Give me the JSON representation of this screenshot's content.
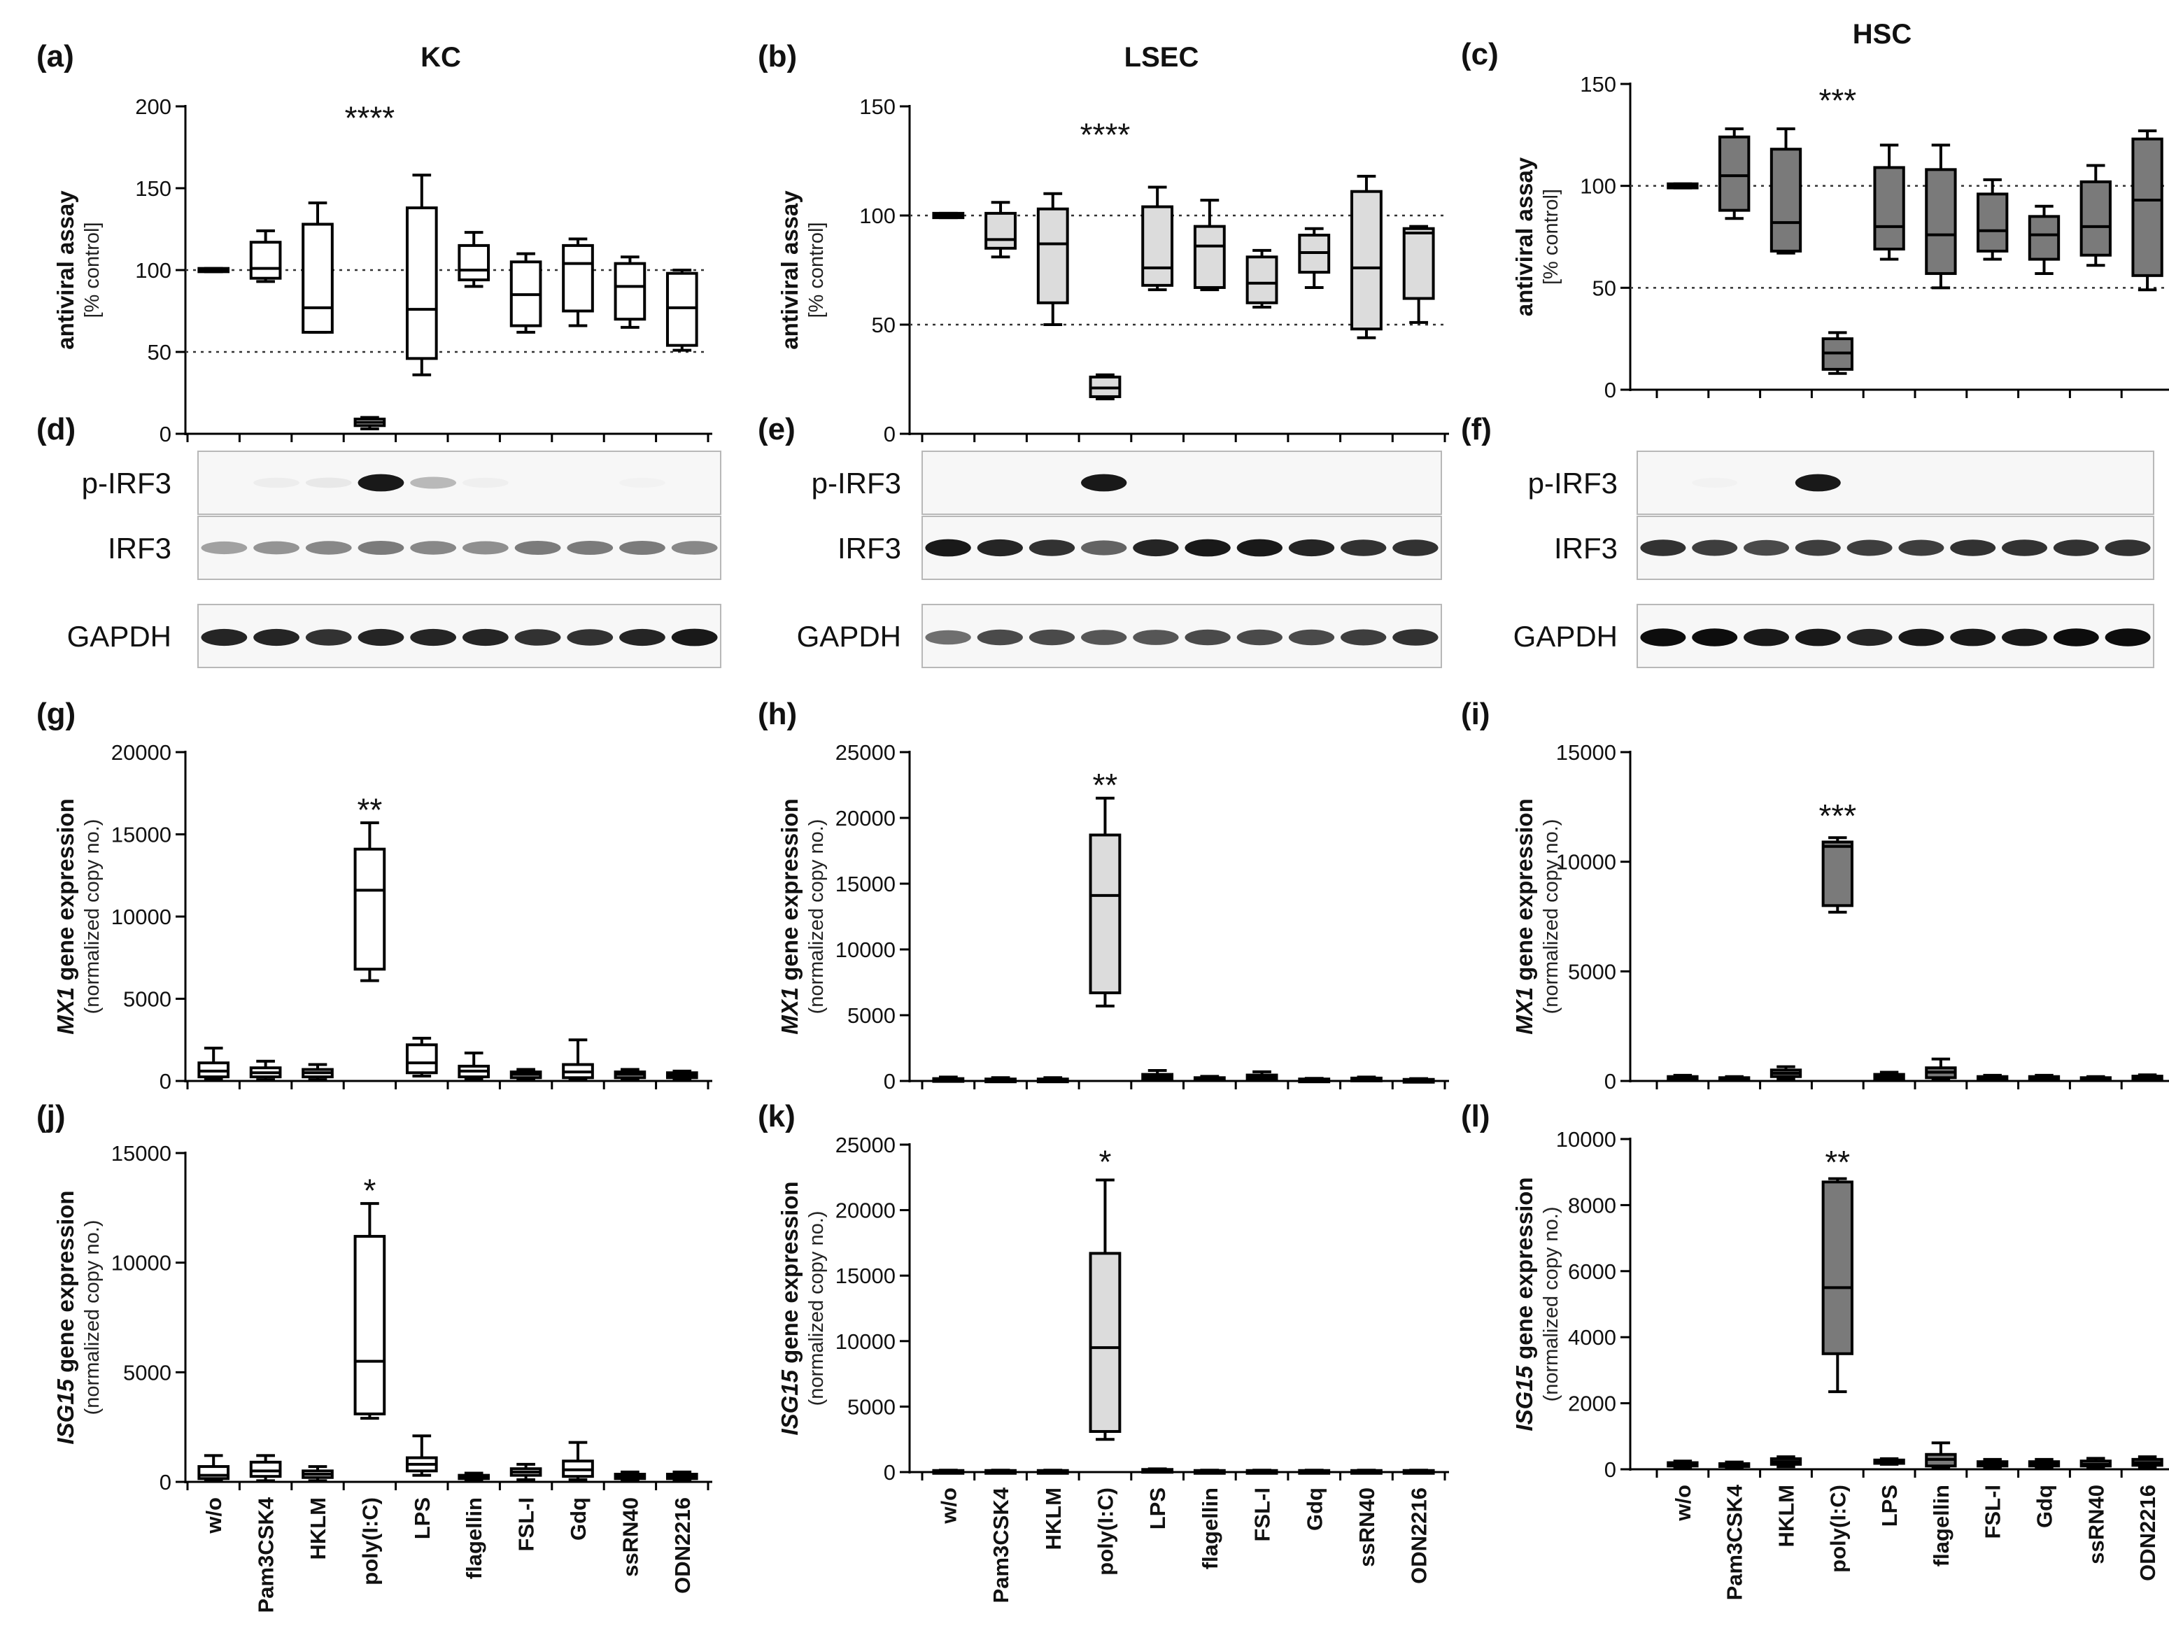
{
  "colors": {
    "KC": "#ffffff",
    "LSEC": "#dcdcdc",
    "HSC": "#7a7a7a",
    "stroke": "#000000",
    "blot_bg": "#f7f7f7"
  },
  "categories": [
    "w/o",
    "Pam3CSK4",
    "HKLM",
    "poly(I:C)",
    "LPS",
    "flagellin",
    "FSL-I",
    "Gdq",
    "ssRN40",
    "ODN2216"
  ],
  "columns": [
    {
      "title": "KC",
      "fill_key": "KC"
    },
    {
      "title": "LSEC",
      "fill_key": "LSEC"
    },
    {
      "title": "HSC",
      "fill_key": "HSC"
    }
  ],
  "blots": [
    {
      "label": "(d)",
      "column": 0,
      "row_labels": [
        "p-IRF3",
        "IRF3",
        "GAPDH"
      ],
      "band_intensity": [
        [
          0,
          0.04,
          0.06,
          0.9,
          0.25,
          0.03,
          0,
          0,
          0.02,
          0
        ],
        [
          0.35,
          0.4,
          0.45,
          0.5,
          0.45,
          0.42,
          0.5,
          0.5,
          0.5,
          0.45
        ],
        [
          0.85,
          0.85,
          0.8,
          0.85,
          0.85,
          0.85,
          0.8,
          0.8,
          0.85,
          0.9
        ]
      ]
    },
    {
      "label": "(e)",
      "column": 1,
      "row_labels": [
        "p-IRF3",
        "IRF3",
        "GAPDH"
      ],
      "band_intensity": [
        [
          0,
          0,
          0,
          0.9,
          0,
          0,
          0,
          0,
          0,
          0
        ],
        [
          0.9,
          0.85,
          0.8,
          0.6,
          0.85,
          0.9,
          0.9,
          0.85,
          0.8,
          0.8
        ],
        [
          0.55,
          0.7,
          0.7,
          0.65,
          0.65,
          0.7,
          0.7,
          0.7,
          0.75,
          0.8
        ]
      ]
    },
    {
      "label": "(f)",
      "column": 2,
      "row_labels": [
        "p-IRF3",
        "IRF3",
        "GAPDH"
      ],
      "band_intensity": [
        [
          0,
          0.02,
          0,
          0.9,
          0,
          0,
          0,
          0,
          0,
          0
        ],
        [
          0.8,
          0.75,
          0.7,
          0.75,
          0.75,
          0.75,
          0.8,
          0.8,
          0.8,
          0.8
        ],
        [
          0.95,
          0.95,
          0.9,
          0.9,
          0.85,
          0.9,
          0.9,
          0.9,
          0.95,
          0.95
        ]
      ]
    }
  ],
  "chart_data": [
    {
      "label": "(a)",
      "column": 0,
      "type": "box",
      "title": "KC",
      "ylabel_italic": "",
      "ylabel_rest": "antiviral assay",
      "ylabel2": "[% control]",
      "ylim": [
        0,
        200
      ],
      "yticks": [
        0,
        50,
        100,
        150,
        200
      ],
      "ref_lines": [
        50,
        100
      ],
      "significance": {
        "index": 3,
        "text": "****",
        "y": 193
      },
      "boxes": [
        {
          "min": 99,
          "q1": 99,
          "median": 100,
          "q3": 101,
          "max": 101
        },
        {
          "min": 93,
          "q1": 95,
          "median": 101,
          "q3": 117,
          "max": 124
        },
        {
          "min": 62,
          "q1": 62,
          "median": 77,
          "q3": 128,
          "max": 141
        },
        {
          "min": 3,
          "q1": 5,
          "median": 7,
          "q3": 9,
          "max": 10
        },
        {
          "min": 36,
          "q1": 46,
          "median": 76,
          "q3": 138,
          "max": 158
        },
        {
          "min": 90,
          "q1": 94,
          "median": 100,
          "q3": 115,
          "max": 123
        },
        {
          "min": 62,
          "q1": 66,
          "median": 85,
          "q3": 105,
          "max": 110
        },
        {
          "min": 66,
          "q1": 75,
          "median": 104,
          "q3": 115,
          "max": 119
        },
        {
          "min": 65,
          "q1": 70,
          "median": 90,
          "q3": 104,
          "max": 108
        },
        {
          "min": 51,
          "q1": 54,
          "median": 77,
          "q3": 98,
          "max": 100
        }
      ]
    },
    {
      "label": "(b)",
      "column": 1,
      "type": "box",
      "title": "LSEC",
      "ylabel_italic": "",
      "ylabel_rest": "antiviral assay",
      "ylabel2": "[% control]",
      "ylim": [
        0,
        150
      ],
      "yticks": [
        0,
        50,
        100,
        150
      ],
      "ref_lines": [
        50,
        100
      ],
      "significance": {
        "index": 3,
        "text": "****",
        "y": 137
      },
      "boxes": [
        {
          "min": 99,
          "q1": 99,
          "median": 100,
          "q3": 101,
          "max": 101
        },
        {
          "min": 81,
          "q1": 85,
          "median": 89,
          "q3": 101,
          "max": 106
        },
        {
          "min": 50,
          "q1": 60,
          "median": 87,
          "q3": 103,
          "max": 110
        },
        {
          "min": 16,
          "q1": 17,
          "median": 21,
          "q3": 26,
          "max": 27
        },
        {
          "min": 66,
          "q1": 68,
          "median": 76,
          "q3": 104,
          "max": 113
        },
        {
          "min": 66,
          "q1": 67,
          "median": 86,
          "q3": 95,
          "max": 107
        },
        {
          "min": 58,
          "q1": 60,
          "median": 69,
          "q3": 81,
          "max": 84
        },
        {
          "min": 67,
          "q1": 74,
          "median": 83,
          "q3": 91,
          "max": 94
        },
        {
          "min": 44,
          "q1": 48,
          "median": 76,
          "q3": 111,
          "max": 118
        },
        {
          "min": 51,
          "q1": 62,
          "median": 92,
          "q3": 94,
          "max": 95
        }
      ]
    },
    {
      "label": "(c)",
      "column": 2,
      "type": "box",
      "title": "HSC",
      "ylabel_italic": "",
      "ylabel_rest": "antiviral assay",
      "ylabel2": "[% control]",
      "ylim": [
        0,
        150
      ],
      "yticks": [
        0,
        50,
        100,
        150
      ],
      "ref_lines": [
        50,
        100
      ],
      "significance": {
        "index": 3,
        "text": "***",
        "y": 142
      },
      "boxes": [
        {
          "min": 99,
          "q1": 99,
          "median": 100,
          "q3": 101,
          "max": 101
        },
        {
          "min": 84,
          "q1": 88,
          "median": 105,
          "q3": 124,
          "max": 128
        },
        {
          "min": 67,
          "q1": 68,
          "median": 82,
          "q3": 118,
          "max": 128
        },
        {
          "min": 8,
          "q1": 10,
          "median": 18,
          "q3": 25,
          "max": 28
        },
        {
          "min": 64,
          "q1": 69,
          "median": 80,
          "q3": 109,
          "max": 120
        },
        {
          "min": 50,
          "q1": 57,
          "median": 76,
          "q3": 108,
          "max": 120
        },
        {
          "min": 64,
          "q1": 68,
          "median": 78,
          "q3": 96,
          "max": 103
        },
        {
          "min": 57,
          "q1": 64,
          "median": 76,
          "q3": 85,
          "max": 90
        },
        {
          "min": 61,
          "q1": 66,
          "median": 80,
          "q3": 102,
          "max": 110
        },
        {
          "min": 49,
          "q1": 56,
          "median": 93,
          "q3": 123,
          "max": 127
        }
      ]
    },
    {
      "label": "(g)",
      "column": 0,
      "type": "box",
      "title": "",
      "ylabel_italic": "MX1",
      "ylabel_rest": " gene expression",
      "ylabel2": "(normalized copy no.)",
      "ylim": [
        0,
        20000
      ],
      "yticks": [
        0,
        5000,
        10000,
        15000,
        20000
      ],
      "ref_lines": [],
      "significance": {
        "index": 3,
        "text": "**",
        "y": 16500
      },
      "boxes": [
        {
          "min": 100,
          "q1": 250,
          "median": 600,
          "q3": 1100,
          "max": 2000
        },
        {
          "min": 80,
          "q1": 250,
          "median": 500,
          "q3": 800,
          "max": 1200
        },
        {
          "min": 80,
          "q1": 250,
          "median": 500,
          "q3": 700,
          "max": 1000
        },
        {
          "min": 6100,
          "q1": 6800,
          "median": 11600,
          "q3": 14100,
          "max": 15700
        },
        {
          "min": 300,
          "q1": 500,
          "median": 1100,
          "q3": 2200,
          "max": 2600
        },
        {
          "min": 100,
          "q1": 250,
          "median": 600,
          "q3": 900,
          "max": 1700
        },
        {
          "min": 100,
          "q1": 200,
          "median": 400,
          "q3": 550,
          "max": 700
        },
        {
          "min": 80,
          "q1": 200,
          "median": 550,
          "q3": 1000,
          "max": 2500
        },
        {
          "min": 100,
          "q1": 200,
          "median": 400,
          "q3": 550,
          "max": 700
        },
        {
          "min": 100,
          "q1": 200,
          "median": 350,
          "q3": 500,
          "max": 600
        }
      ]
    },
    {
      "label": "(h)",
      "column": 1,
      "type": "box",
      "title": "",
      "ylabel_italic": "MX1",
      "ylabel_rest": " gene expression",
      "ylabel2": "(normalized copy no.)",
      "ylim": [
        0,
        25000
      ],
      "yticks": [
        0,
        5000,
        10000,
        15000,
        20000,
        25000
      ],
      "ref_lines": [],
      "significance": {
        "index": 3,
        "text": "**",
        "y": 22500
      },
      "boxes": [
        {
          "min": 50,
          "q1": 80,
          "median": 120,
          "q3": 180,
          "max": 300
        },
        {
          "min": 30,
          "q1": 60,
          "median": 100,
          "q3": 150,
          "max": 250
        },
        {
          "min": 30,
          "q1": 60,
          "median": 100,
          "q3": 150,
          "max": 250
        },
        {
          "min": 5700,
          "q1": 6700,
          "median": 14100,
          "q3": 18700,
          "max": 21500
        },
        {
          "min": 50,
          "q1": 150,
          "median": 300,
          "q3": 500,
          "max": 800
        },
        {
          "min": 30,
          "q1": 80,
          "median": 150,
          "q3": 250,
          "max": 350
        },
        {
          "min": 50,
          "q1": 150,
          "median": 300,
          "q3": 450,
          "max": 700
        },
        {
          "min": 30,
          "q1": 60,
          "median": 100,
          "q3": 150,
          "max": 200
        },
        {
          "min": 30,
          "q1": 80,
          "median": 150,
          "q3": 220,
          "max": 300
        },
        {
          "min": 30,
          "q1": 50,
          "median": 80,
          "q3": 120,
          "max": 180
        }
      ]
    },
    {
      "label": "(i)",
      "column": 2,
      "type": "box",
      "title": "",
      "ylabel_italic": "MX1",
      "ylabel_rest": " gene expression",
      "ylabel2": "(normalized copy no.)",
      "ylim": [
        0,
        15000
      ],
      "yticks": [
        0,
        5000,
        10000,
        15000
      ],
      "ref_lines": [],
      "significance": {
        "index": 3,
        "text": "***",
        "y": 12100
      },
      "boxes": [
        {
          "min": 60,
          "q1": 100,
          "median": 150,
          "q3": 200,
          "max": 260
        },
        {
          "min": 50,
          "q1": 80,
          "median": 110,
          "q3": 150,
          "max": 200
        },
        {
          "min": 100,
          "q1": 200,
          "median": 350,
          "q3": 500,
          "max": 650
        },
        {
          "min": 7700,
          "q1": 8000,
          "median": 10700,
          "q3": 10900,
          "max": 11100
        },
        {
          "min": 50,
          "q1": 100,
          "median": 200,
          "q3": 300,
          "max": 400
        },
        {
          "min": 50,
          "q1": 150,
          "median": 400,
          "q3": 600,
          "max": 1000
        },
        {
          "min": 60,
          "q1": 100,
          "median": 150,
          "q3": 200,
          "max": 260
        },
        {
          "min": 60,
          "q1": 100,
          "median": 150,
          "q3": 200,
          "max": 260
        },
        {
          "min": 50,
          "q1": 80,
          "median": 100,
          "q3": 150,
          "max": 200
        },
        {
          "min": 60,
          "q1": 100,
          "median": 150,
          "q3": 220,
          "max": 280
        }
      ]
    },
    {
      "label": "(j)",
      "column": 0,
      "type": "box",
      "title": "",
      "ylabel_italic": "ISG15",
      "ylabel_rest": " gene expression",
      "ylabel2": "(normalized copy no.)",
      "ylim": [
        0,
        15000
      ],
      "yticks": [
        0,
        5000,
        10000,
        15000
      ],
      "ref_lines": [],
      "significance": {
        "index": 3,
        "text": "*",
        "y": 13300
      },
      "boxes": [
        {
          "min": 50,
          "q1": 150,
          "median": 300,
          "q3": 700,
          "max": 1200
        },
        {
          "min": 50,
          "q1": 250,
          "median": 500,
          "q3": 900,
          "max": 1200
        },
        {
          "min": 50,
          "q1": 200,
          "median": 350,
          "q3": 500,
          "max": 700
        },
        {
          "min": 2900,
          "q1": 3100,
          "median": 5500,
          "q3": 11200,
          "max": 12700
        },
        {
          "min": 300,
          "q1": 500,
          "median": 800,
          "q3": 1100,
          "max": 2100
        },
        {
          "min": 50,
          "q1": 150,
          "median": 250,
          "q3": 300,
          "max": 400
        },
        {
          "min": 100,
          "q1": 300,
          "median": 450,
          "q3": 600,
          "max": 800
        },
        {
          "min": 100,
          "q1": 250,
          "median": 550,
          "q3": 950,
          "max": 1800
        },
        {
          "min": 50,
          "q1": 150,
          "median": 250,
          "q3": 350,
          "max": 450
        },
        {
          "min": 50,
          "q1": 150,
          "median": 250,
          "q3": 350,
          "max": 450
        }
      ]
    },
    {
      "label": "(k)",
      "column": 1,
      "type": "box",
      "title": "",
      "ylabel_italic": "ISG15",
      "ylabel_rest": " gene expression",
      "ylabel2": "(normalized copy no.)",
      "ylim": [
        0,
        25000
      ],
      "yticks": [
        0,
        5000,
        10000,
        15000,
        20000,
        25000
      ],
      "ref_lines": [],
      "significance": {
        "index": 3,
        "text": "*",
        "y": 23700
      },
      "boxes": [
        {
          "min": 30,
          "q1": 50,
          "median": 80,
          "q3": 120,
          "max": 150
        },
        {
          "min": 30,
          "q1": 50,
          "median": 80,
          "q3": 120,
          "max": 150
        },
        {
          "min": 30,
          "q1": 50,
          "median": 80,
          "q3": 120,
          "max": 150
        },
        {
          "min": 2500,
          "q1": 3100,
          "median": 9500,
          "q3": 16700,
          "max": 22300
        },
        {
          "min": 30,
          "q1": 80,
          "median": 150,
          "q3": 200,
          "max": 250
        },
        {
          "min": 30,
          "q1": 50,
          "median": 80,
          "q3": 120,
          "max": 150
        },
        {
          "min": 30,
          "q1": 50,
          "median": 80,
          "q3": 120,
          "max": 150
        },
        {
          "min": 30,
          "q1": 50,
          "median": 80,
          "q3": 120,
          "max": 150
        },
        {
          "min": 30,
          "q1": 50,
          "median": 80,
          "q3": 120,
          "max": 150
        },
        {
          "min": 30,
          "q1": 50,
          "median": 80,
          "q3": 120,
          "max": 150
        }
      ]
    },
    {
      "label": "(l)",
      "column": 2,
      "type": "box",
      "title": "",
      "ylabel_italic": "ISG15",
      "ylabel_rest": " gene expression",
      "ylabel2": "(normalized copy no.)",
      "ylim": [
        0,
        10000
      ],
      "yticks": [
        0,
        2000,
        4000,
        6000,
        8000,
        10000
      ],
      "ref_lines": [],
      "significance": {
        "index": 3,
        "text": "**",
        "y": 9300
      },
      "boxes": [
        {
          "min": 60,
          "q1": 100,
          "median": 150,
          "q3": 200,
          "max": 250
        },
        {
          "min": 60,
          "q1": 90,
          "median": 120,
          "q3": 170,
          "max": 220
        },
        {
          "min": 80,
          "q1": 150,
          "median": 230,
          "q3": 320,
          "max": 380
        },
        {
          "min": 2350,
          "q1": 3500,
          "median": 5500,
          "q3": 8700,
          "max": 8800
        },
        {
          "min": 150,
          "q1": 180,
          "median": 230,
          "q3": 280,
          "max": 320
        },
        {
          "min": 50,
          "q1": 100,
          "median": 300,
          "q3": 450,
          "max": 800
        },
        {
          "min": 60,
          "q1": 100,
          "median": 150,
          "q3": 230,
          "max": 300
        },
        {
          "min": 60,
          "q1": 100,
          "median": 150,
          "q3": 230,
          "max": 300
        },
        {
          "min": 60,
          "q1": 100,
          "median": 150,
          "q3": 250,
          "max": 330
        },
        {
          "min": 60,
          "q1": 120,
          "median": 200,
          "q3": 300,
          "max": 380
        }
      ]
    }
  ]
}
